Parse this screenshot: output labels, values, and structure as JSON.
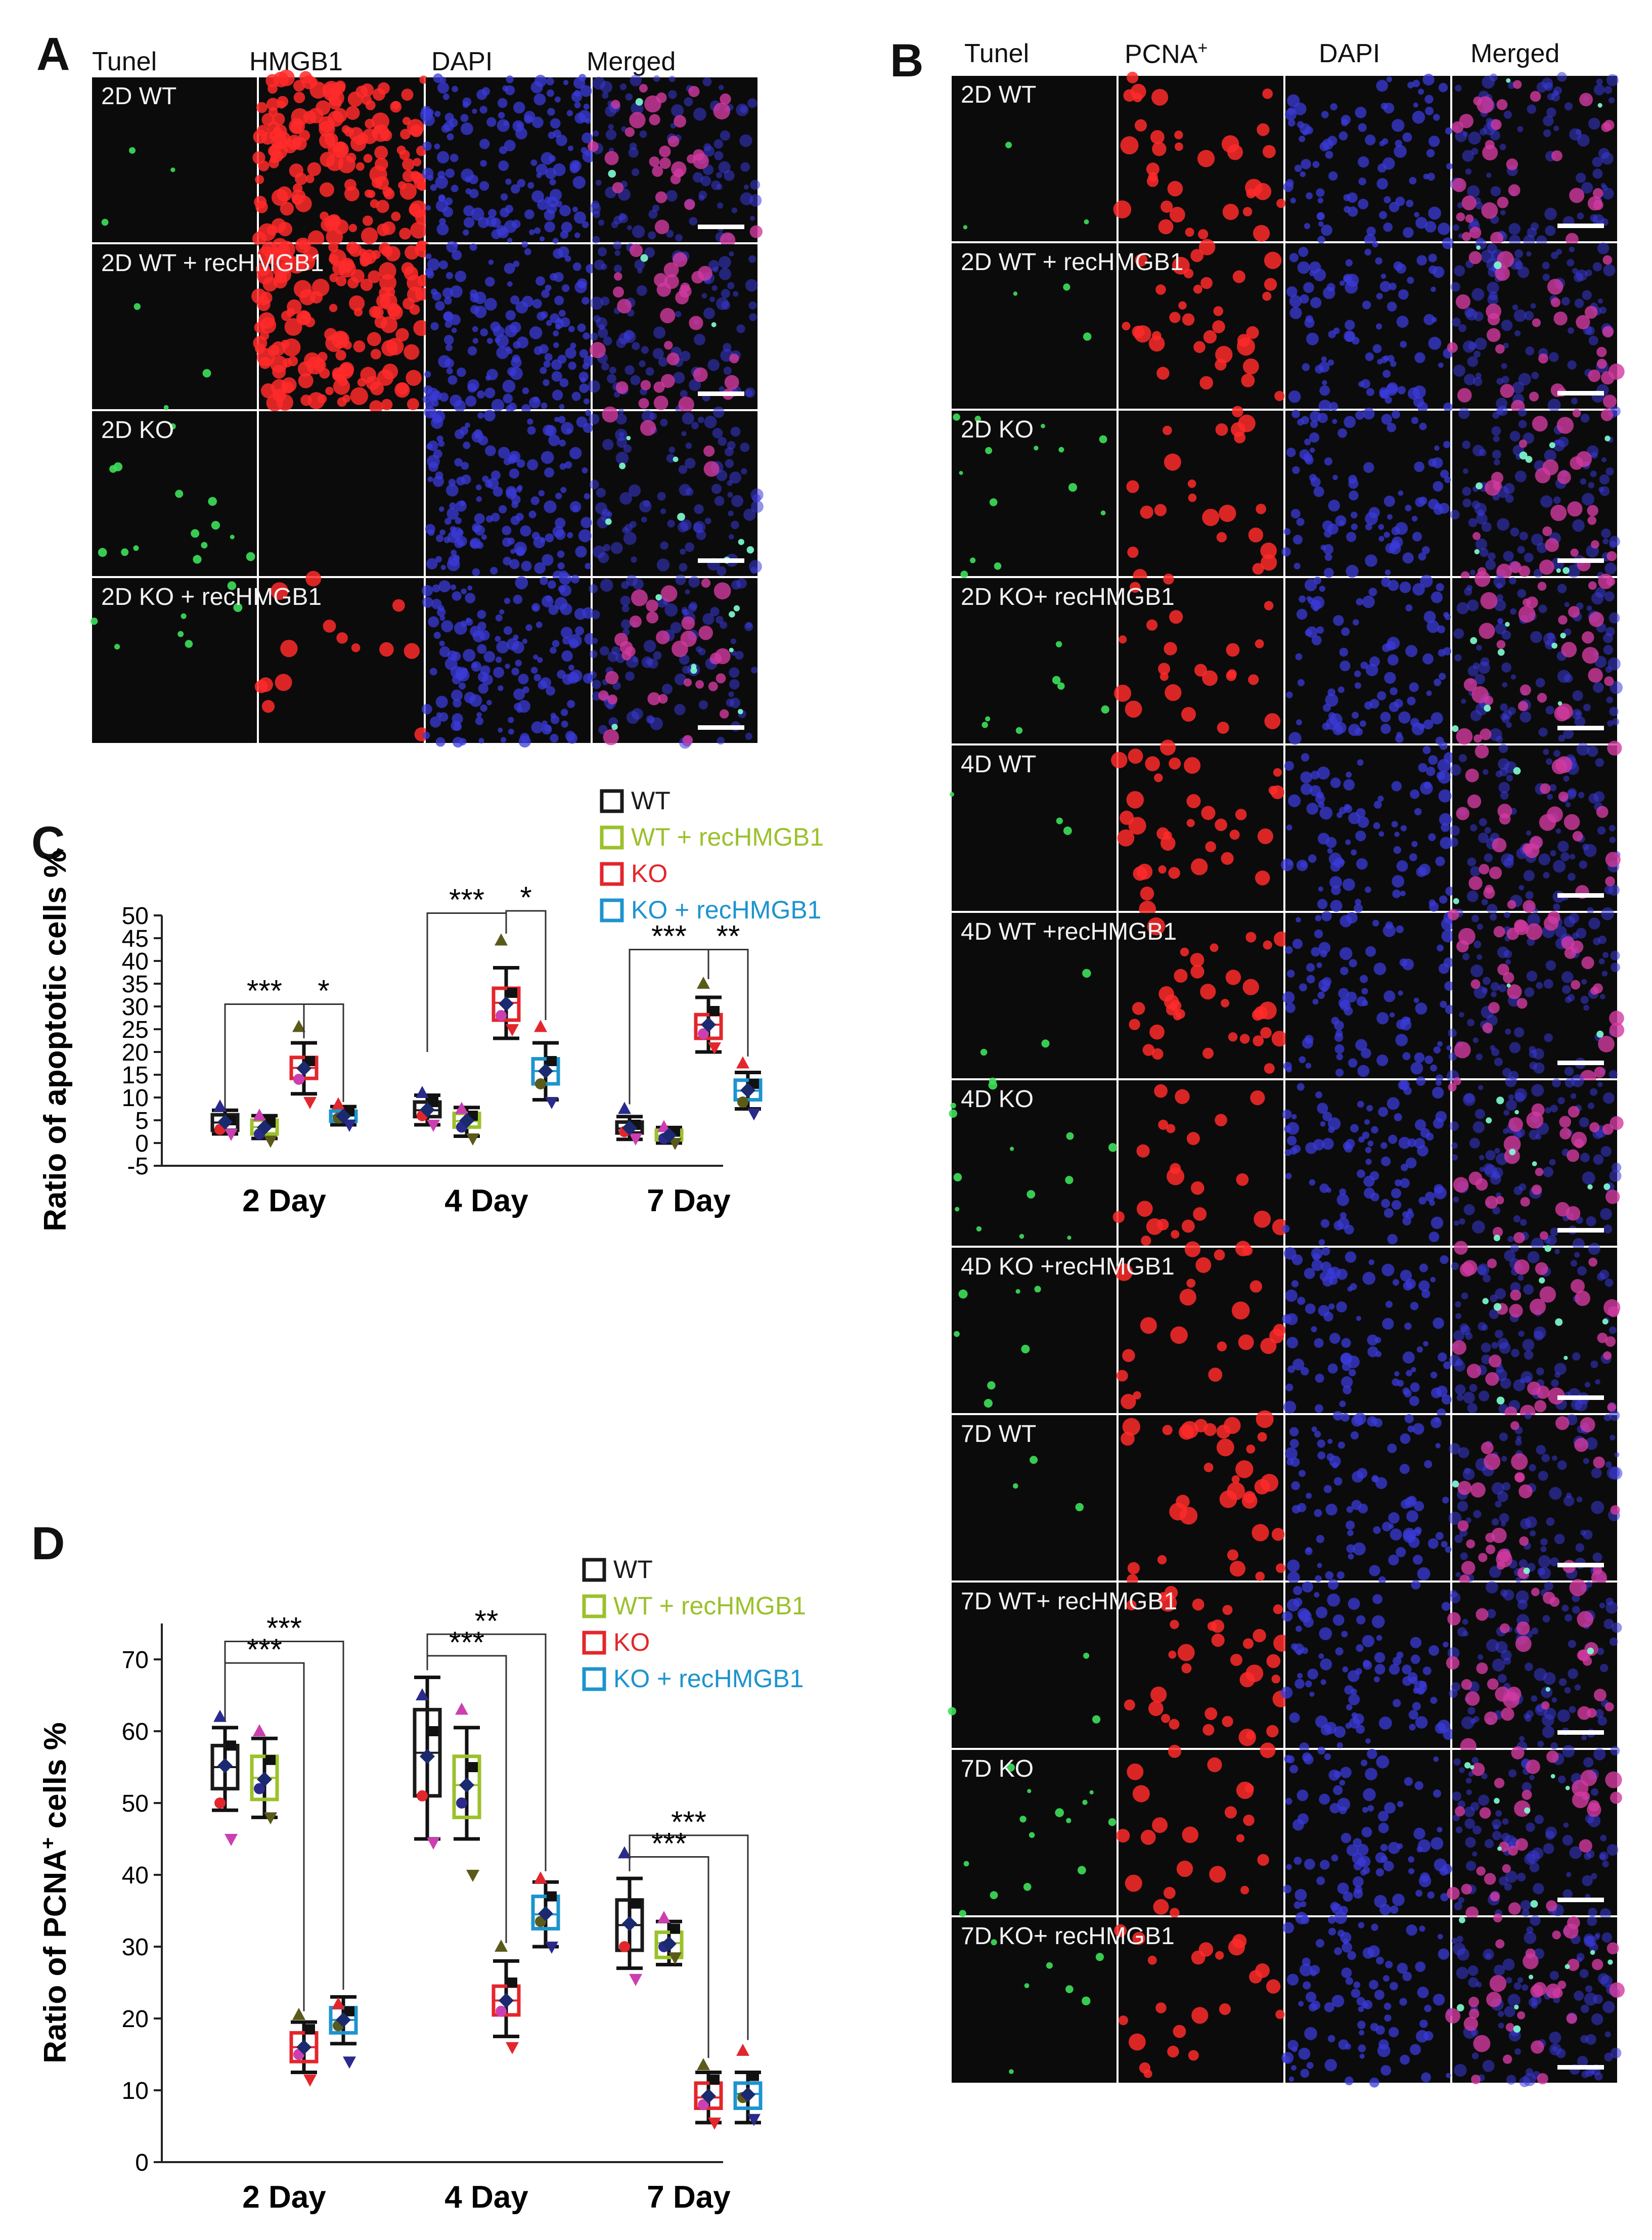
{
  "panel_a": {
    "letter": "A",
    "columns": [
      "Tunel",
      "HMGB1",
      "DAPI",
      "Merged"
    ],
    "rows": [
      "2D WT",
      "2D WT + recHMGB1",
      "2D KO",
      "2D KO + recHMGB1"
    ]
  },
  "panel_b": {
    "letter": "B",
    "columns": [
      "Tunel",
      "PCNA",
      "DAPI",
      "Merged"
    ],
    "pcna_superscript": "+",
    "rows": [
      "2D WT",
      "2D WT + recHMGB1",
      "2D KO",
      "2D KO+ recHMGB1",
      "4D WT",
      "4D WT +recHMGB1",
      "4D KO",
      "4D KO +recHMGB1",
      "7D WT",
      "7D WT+ recHMGB1",
      "7D KO",
      "7D KO+ recHMGB1"
    ]
  },
  "colors": {
    "WT": "#1a1a1a",
    "WT + recHMGB1": "#9bc12b",
    "KO": "#e3262c",
    "KO + recHMGB1": "#1d94cf",
    "tunel": "#3de05a",
    "red_stain": "#ff2a2a",
    "dapi": "#3b3bd9",
    "merged": "#d23aa0"
  },
  "chart_data": [
    {
      "panel": "C",
      "type": "box",
      "ylabel": "Ratio of apoptotic cells %",
      "ylabel_sup": "",
      "ylabel_tail": "",
      "ylim": [
        -5,
        50
      ],
      "yticks": [
        -5,
        0,
        5,
        10,
        15,
        20,
        25,
        30,
        35,
        40,
        45,
        50
      ],
      "categories": [
        "2 Day",
        "4 Day",
        "7 Day"
      ],
      "series": [
        {
          "name": "WT",
          "stats": [
            {
              "q1": 2.8,
              "q3": 6.2,
              "median": 4.5,
              "mean": 4.6,
              "whisk_lo": 2.0,
              "whisk_hi": 7.2
            },
            {
              "q1": 5.8,
              "q3": 9.0,
              "median": 7.2,
              "mean": 7.3,
              "whisk_lo": 4.0,
              "whisk_hi": 10.5
            },
            {
              "q1": 2.2,
              "q3": 4.6,
              "median": 3.2,
              "mean": 3.3,
              "whisk_lo": 0.8,
              "whisk_hi": 5.8
            }
          ],
          "points": [
            [
              8.0,
              2.0,
              3.0,
              5.0
            ],
            [
              11.0,
              4.0,
              6.0,
              9.0
            ],
            [
              7.5,
              1.0,
              2.5,
              4.0
            ]
          ]
        },
        {
          "name": "WT + recHMGB1",
          "stats": [
            {
              "q1": 2.0,
              "q3": 5.0,
              "median": 3.5,
              "mean": 3.4,
              "whisk_lo": 1.0,
              "whisk_hi": 6.0
            },
            {
              "q1": 3.5,
              "q3": 6.5,
              "median": 4.8,
              "mean": 4.9,
              "whisk_lo": 1.5,
              "whisk_hi": 7.8
            },
            {
              "q1": 0.7,
              "q3": 2.8,
              "median": 1.6,
              "mean": 1.7,
              "whisk_lo": 0.0,
              "whisk_hi": 3.4
            }
          ],
          "points": [
            [
              6.0,
              0.5,
              2.0,
              4.5
            ],
            [
              7.5,
              1.0,
              3.5,
              6.0
            ],
            [
              3.5,
              0.0,
              1.0,
              2.5
            ]
          ]
        },
        {
          "name": "KO",
          "stats": [
            {
              "q1": 14.2,
              "q3": 18.8,
              "median": 16.5,
              "mean": 16.4,
              "whisk_lo": 10.8,
              "whisk_hi": 22.0
            },
            {
              "q1": 27.0,
              "q3": 34.0,
              "median": 30.8,
              "mean": 30.6,
              "whisk_lo": 23.0,
              "whisk_hi": 38.5
            },
            {
              "q1": 23.0,
              "q3": 28.2,
              "median": 26.0,
              "mean": 26.0,
              "whisk_lo": 20.0,
              "whisk_hi": 32.0
            }
          ],
          "points": [
            [
              25.5,
              9.0,
              14.0,
              18.0
            ],
            [
              44.5,
              25.0,
              28.0,
              33.0
            ],
            [
              35.0,
              21.0,
              24.0,
              29.0
            ]
          ]
        },
        {
          "name": "KO + recHMGB1",
          "stats": [
            {
              "q1": 4.8,
              "q3": 7.0,
              "median": 6.0,
              "mean": 5.9,
              "whisk_lo": 4.0,
              "whisk_hi": 8.0
            },
            {
              "q1": 13.0,
              "q3": 18.5,
              "median": 15.8,
              "mean": 15.8,
              "whisk_lo": 9.5,
              "whisk_hi": 22.0
            },
            {
              "q1": 9.5,
              "q3": 13.8,
              "median": 11.5,
              "mean": 11.6,
              "whisk_lo": 7.5,
              "whisk_hi": 15.5
            }
          ],
          "points": [
            [
              8.5,
              4.0,
              5.5,
              7.0
            ],
            [
              25.5,
              9.0,
              13.0,
              18.0
            ],
            [
              17.5,
              6.5,
              9.0,
              13.0
            ]
          ]
        }
      ],
      "significance": [
        {
          "stars": "***",
          "group": 0,
          "from": 0,
          "to": 2,
          "y": 30.5,
          "y_end_from": 7.5,
          "y_end_to": 23.0
        },
        {
          "stars": "*",
          "group": 0,
          "from": 2,
          "to": 3,
          "y": 30.5,
          "y_end_from": 23.0,
          "y_end_to": 9.0
        },
        {
          "stars": "***",
          "group": 1,
          "from": 0,
          "to": 2,
          "y": 50.5,
          "y_end_from": 20.0,
          "y_end_to": 46.0
        },
        {
          "stars": "*",
          "group": 1,
          "from": 2,
          "to": 3,
          "y": 51.0,
          "y_end_from": 46.0,
          "y_end_to": 27.0
        },
        {
          "stars": "***",
          "group": 2,
          "from": 0,
          "to": 2,
          "y": 42.5,
          "y_end_from": 8.5,
          "y_end_to": 36.0
        },
        {
          "stars": "**",
          "group": 2,
          "from": 2,
          "to": 3,
          "y": 42.5,
          "y_end_from": 36.0,
          "y_end_to": 19.0
        }
      ],
      "legend": [
        "WT",
        "WT + recHMGB1",
        "KO",
        "KO + recHMGB1"
      ]
    },
    {
      "panel": "D",
      "type": "box",
      "ylabel": "Ratio of PCNA",
      "ylabel_sup": "+",
      "ylabel_tail": " cells %",
      "ylim": [
        0,
        75
      ],
      "yticks": [
        0,
        10,
        20,
        30,
        40,
        50,
        60,
        70
      ],
      "categories": [
        "2 Day",
        "4 Day",
        "7 Day"
      ],
      "series": [
        {
          "name": "WT",
          "stats": [
            {
              "q1": 52.0,
              "q3": 58.0,
              "median": 55.0,
              "mean": 55.2,
              "whisk_lo": 49.0,
              "whisk_hi": 60.5
            },
            {
              "q1": 51.0,
              "q3": 63.0,
              "median": 57.0,
              "mean": 56.5,
              "whisk_lo": 45.0,
              "whisk_hi": 67.5
            },
            {
              "q1": 29.5,
              "q3": 36.5,
              "median": 33.0,
              "mean": 33.2,
              "whisk_lo": 27.0,
              "whisk_hi": 39.5
            }
          ],
          "points": [
            [
              62.0,
              45.0,
              50.0,
              58.0
            ],
            [
              65.0,
              44.5,
              51.0,
              60.0
            ],
            [
              43.0,
              25.5,
              30.0,
              36.0
            ]
          ]
        },
        {
          "name": "WT + recHMGB1",
          "stats": [
            {
              "q1": 50.5,
              "q3": 56.5,
              "median": 53.5,
              "mean": 53.3,
              "whisk_lo": 48.0,
              "whisk_hi": 59.0
            },
            {
              "q1": 48.0,
              "q3": 56.5,
              "median": 52.5,
              "mean": 52.5,
              "whisk_lo": 45.0,
              "whisk_hi": 60.5
            },
            {
              "q1": 28.5,
              "q3": 32.0,
              "median": 30.5,
              "mean": 30.4,
              "whisk_lo": 27.5,
              "whisk_hi": 33.5
            }
          ],
          "points": [
            [
              60.0,
              48.0,
              52.0,
              56.0
            ],
            [
              63.0,
              40.0,
              50.0,
              55.0
            ],
            [
              34.0,
              28.5,
              30.0,
              32.5
            ]
          ]
        },
        {
          "name": "KO",
          "stats": [
            {
              "q1": 14.0,
              "q3": 18.0,
              "median": 16.0,
              "mean": 16.0,
              "whisk_lo": 12.5,
              "whisk_hi": 19.5
            },
            {
              "q1": 20.5,
              "q3": 24.5,
              "median": 22.5,
              "mean": 22.5,
              "whisk_lo": 17.5,
              "whisk_hi": 28.0
            },
            {
              "q1": 7.5,
              "q3": 11.0,
              "median": 9.0,
              "mean": 9.2,
              "whisk_lo": 5.5,
              "whisk_hi": 12.5
            }
          ],
          "points": [
            [
              20.5,
              11.5,
              15.0,
              18.5
            ],
            [
              30.0,
              16.0,
              21.0,
              25.0
            ],
            [
              13.5,
              5.5,
              8.0,
              11.5
            ]
          ]
        },
        {
          "name": "KO + recHMGB1",
          "stats": [
            {
              "q1": 18.0,
              "q3": 21.5,
              "median": 19.8,
              "mean": 19.8,
              "whisk_lo": 16.5,
              "whisk_hi": 23.0
            },
            {
              "q1": 32.5,
              "q3": 37.0,
              "median": 34.5,
              "mean": 34.6,
              "whisk_lo": 30.0,
              "whisk_hi": 39.0
            },
            {
              "q1": 7.5,
              "q3": 11.0,
              "median": 9.5,
              "mean": 9.4,
              "whisk_lo": 5.5,
              "whisk_hi": 12.5
            }
          ],
          "points": [
            [
              22.0,
              14.0,
              19.0,
              21.0
            ],
            [
              39.5,
              30.0,
              33.5,
              37.0
            ],
            [
              15.5,
              6.0,
              9.0,
              12.0
            ]
          ]
        }
      ],
      "significance": [
        {
          "stars": "***",
          "group": 0,
          "from": 0,
          "to": 3,
          "y": 72.5,
          "y_end_from": 61.5,
          "y_end_to": 24.0
        },
        {
          "stars": "***",
          "group": 0,
          "from": 0,
          "to": 2,
          "y": 69.5,
          "y_end_from": 61.5,
          "y_end_to": 21.0
        },
        {
          "stars": "**",
          "group": 1,
          "from": 0,
          "to": 3,
          "y": 73.5,
          "y_end_from": 68.5,
          "y_end_to": 40.5
        },
        {
          "stars": "***",
          "group": 1,
          "from": 0,
          "to": 2,
          "y": 70.5,
          "y_end_from": 68.5,
          "y_end_to": 30.5
        },
        {
          "stars": "***",
          "group": 2,
          "from": 0,
          "to": 3,
          "y": 45.5,
          "y_end_from": 40.5,
          "y_end_to": 17.0
        },
        {
          "stars": "***",
          "group": 2,
          "from": 0,
          "to": 2,
          "y": 42.5,
          "y_end_from": 40.5,
          "y_end_to": 14.5
        }
      ],
      "legend": [
        "WT",
        "WT + recHMGB1",
        "KO",
        "KO + recHMGB1"
      ]
    }
  ]
}
